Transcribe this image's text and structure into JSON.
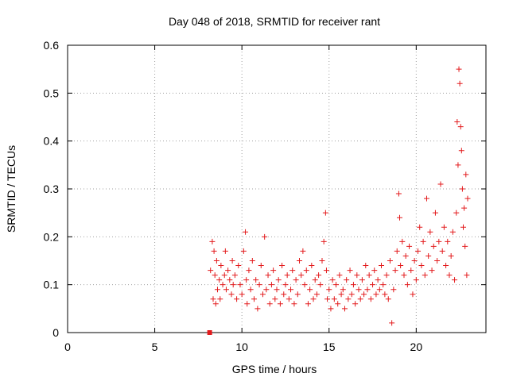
{
  "chart_data": {
    "type": "scatter",
    "title": "Day 048 of 2018, SRMTID for receiver rant",
    "xlabel": "GPS time / hours",
    "ylabel": "SRMTID / TECUs",
    "xlim": [
      0,
      24
    ],
    "ylim": [
      0,
      0.6
    ],
    "xticks": [
      0,
      5,
      10,
      15,
      20
    ],
    "xtick_labels": [
      "0",
      "5",
      "10",
      "15",
      "20"
    ],
    "yticks": [
      0,
      0.1,
      0.2,
      0.3,
      0.4,
      0.5,
      0.6
    ],
    "ytick_labels": [
      "0",
      "0.1",
      "0.2",
      "0.3",
      "0.4",
      "0.5",
      "0.6"
    ],
    "grid": true,
    "marker": "+",
    "color": "#e31a1c",
    "square_marker": {
      "x": 8.15,
      "y": 0.0
    },
    "series": [
      {
        "name": "SRMTID",
        "points": [
          [
            8.2,
            0.13
          ],
          [
            8.3,
            0.19
          ],
          [
            8.35,
            0.07
          ],
          [
            8.4,
            0.17
          ],
          [
            8.45,
            0.12
          ],
          [
            8.5,
            0.06
          ],
          [
            8.55,
            0.15
          ],
          [
            8.6,
            0.09
          ],
          [
            8.7,
            0.11
          ],
          [
            8.75,
            0.07
          ],
          [
            8.8,
            0.14
          ],
          [
            8.9,
            0.1
          ],
          [
            9.0,
            0.12
          ],
          [
            9.05,
            0.17
          ],
          [
            9.1,
            0.09
          ],
          [
            9.2,
            0.13
          ],
          [
            9.3,
            0.11
          ],
          [
            9.4,
            0.08
          ],
          [
            9.45,
            0.15
          ],
          [
            9.5,
            0.1
          ],
          [
            9.6,
            0.12
          ],
          [
            9.7,
            0.07
          ],
          [
            9.8,
            0.14
          ],
          [
            9.9,
            0.1
          ],
          [
            10.0,
            0.08
          ],
          [
            10.1,
            0.17
          ],
          [
            10.2,
            0.21
          ],
          [
            10.25,
            0.11
          ],
          [
            10.3,
            0.06
          ],
          [
            10.4,
            0.13
          ],
          [
            10.5,
            0.09
          ],
          [
            10.6,
            0.15
          ],
          [
            10.7,
            0.07
          ],
          [
            10.8,
            0.11
          ],
          [
            10.9,
            0.05
          ],
          [
            11.0,
            0.1
          ],
          [
            11.1,
            0.14
          ],
          [
            11.2,
            0.08
          ],
          [
            11.3,
            0.2
          ],
          [
            11.4,
            0.09
          ],
          [
            11.5,
            0.12
          ],
          [
            11.6,
            0.06
          ],
          [
            11.7,
            0.1
          ],
          [
            11.8,
            0.13
          ],
          [
            11.9,
            0.07
          ],
          [
            12.0,
            0.09
          ],
          [
            12.1,
            0.11
          ],
          [
            12.2,
            0.06
          ],
          [
            12.3,
            0.14
          ],
          [
            12.4,
            0.08
          ],
          [
            12.5,
            0.1
          ],
          [
            12.6,
            0.12
          ],
          [
            12.7,
            0.07
          ],
          [
            12.8,
            0.09
          ],
          [
            12.9,
            0.13
          ],
          [
            13.0,
            0.06
          ],
          [
            13.1,
            0.11
          ],
          [
            13.2,
            0.08
          ],
          [
            13.3,
            0.15
          ],
          [
            13.4,
            0.12
          ],
          [
            13.5,
            0.17
          ],
          [
            13.6,
            0.1
          ],
          [
            13.7,
            0.13
          ],
          [
            13.8,
            0.06
          ],
          [
            13.9,
            0.09
          ],
          [
            14.0,
            0.14
          ],
          [
            14.1,
            0.07
          ],
          [
            14.2,
            0.11
          ],
          [
            14.3,
            0.08
          ],
          [
            14.4,
            0.12
          ],
          [
            14.5,
            0.1
          ],
          [
            14.6,
            0.15
          ],
          [
            14.7,
            0.19
          ],
          [
            14.8,
            0.25
          ],
          [
            14.85,
            0.13
          ],
          [
            14.9,
            0.07
          ],
          [
            15.0,
            0.09
          ],
          [
            15.1,
            0.05
          ],
          [
            15.2,
            0.11
          ],
          [
            15.3,
            0.07
          ],
          [
            15.4,
            0.1
          ],
          [
            15.5,
            0.06
          ],
          [
            15.6,
            0.12
          ],
          [
            15.7,
            0.08
          ],
          [
            15.8,
            0.09
          ],
          [
            15.9,
            0.05
          ],
          [
            16.0,
            0.11
          ],
          [
            16.1,
            0.07
          ],
          [
            16.2,
            0.13
          ],
          [
            16.3,
            0.08
          ],
          [
            16.4,
            0.1
          ],
          [
            16.5,
            0.06
          ],
          [
            16.6,
            0.12
          ],
          [
            16.7,
            0.09
          ],
          [
            16.8,
            0.07
          ],
          [
            16.9,
            0.11
          ],
          [
            17.0,
            0.08
          ],
          [
            17.1,
            0.14
          ],
          [
            17.2,
            0.09
          ],
          [
            17.3,
            0.12
          ],
          [
            17.4,
            0.07
          ],
          [
            17.5,
            0.1
          ],
          [
            17.6,
            0.13
          ],
          [
            17.7,
            0.08
          ],
          [
            17.8,
            0.11
          ],
          [
            17.9,
            0.09
          ],
          [
            18.0,
            0.14
          ],
          [
            18.1,
            0.1
          ],
          [
            18.2,
            0.08
          ],
          [
            18.3,
            0.12
          ],
          [
            18.4,
            0.07
          ],
          [
            18.5,
            0.15
          ],
          [
            18.6,
            0.02
          ],
          [
            18.7,
            0.09
          ],
          [
            18.8,
            0.13
          ],
          [
            18.9,
            0.17
          ],
          [
            19.0,
            0.29
          ],
          [
            19.05,
            0.24
          ],
          [
            19.1,
            0.14
          ],
          [
            19.2,
            0.19
          ],
          [
            19.3,
            0.12
          ],
          [
            19.4,
            0.16
          ],
          [
            19.5,
            0.1
          ],
          [
            19.6,
            0.18
          ],
          [
            19.7,
            0.13
          ],
          [
            19.8,
            0.08
          ],
          [
            19.9,
            0.15
          ],
          [
            20.0,
            0.11
          ],
          [
            20.1,
            0.17
          ],
          [
            20.2,
            0.22
          ],
          [
            20.3,
            0.14
          ],
          [
            20.4,
            0.19
          ],
          [
            20.5,
            0.12
          ],
          [
            20.6,
            0.28
          ],
          [
            20.7,
            0.16
          ],
          [
            20.8,
            0.21
          ],
          [
            20.9,
            0.13
          ],
          [
            21.0,
            0.18
          ],
          [
            21.1,
            0.25
          ],
          [
            21.2,
            0.15
          ],
          [
            21.3,
            0.19
          ],
          [
            21.4,
            0.31
          ],
          [
            21.5,
            0.17
          ],
          [
            21.6,
            0.22
          ],
          [
            21.7,
            0.14
          ],
          [
            21.8,
            0.19
          ],
          [
            21.9,
            0.12
          ],
          [
            22.0,
            0.16
          ],
          [
            22.1,
            0.21
          ],
          [
            22.2,
            0.11
          ],
          [
            22.3,
            0.25
          ],
          [
            22.35,
            0.44
          ],
          [
            22.4,
            0.35
          ],
          [
            22.45,
            0.55
          ],
          [
            22.5,
            0.52
          ],
          [
            22.55,
            0.43
          ],
          [
            22.6,
            0.38
          ],
          [
            22.65,
            0.3
          ],
          [
            22.7,
            0.22
          ],
          [
            22.75,
            0.26
          ],
          [
            22.8,
            0.18
          ],
          [
            22.85,
            0.33
          ],
          [
            22.9,
            0.12
          ],
          [
            22.95,
            0.28
          ]
        ]
      }
    ]
  }
}
